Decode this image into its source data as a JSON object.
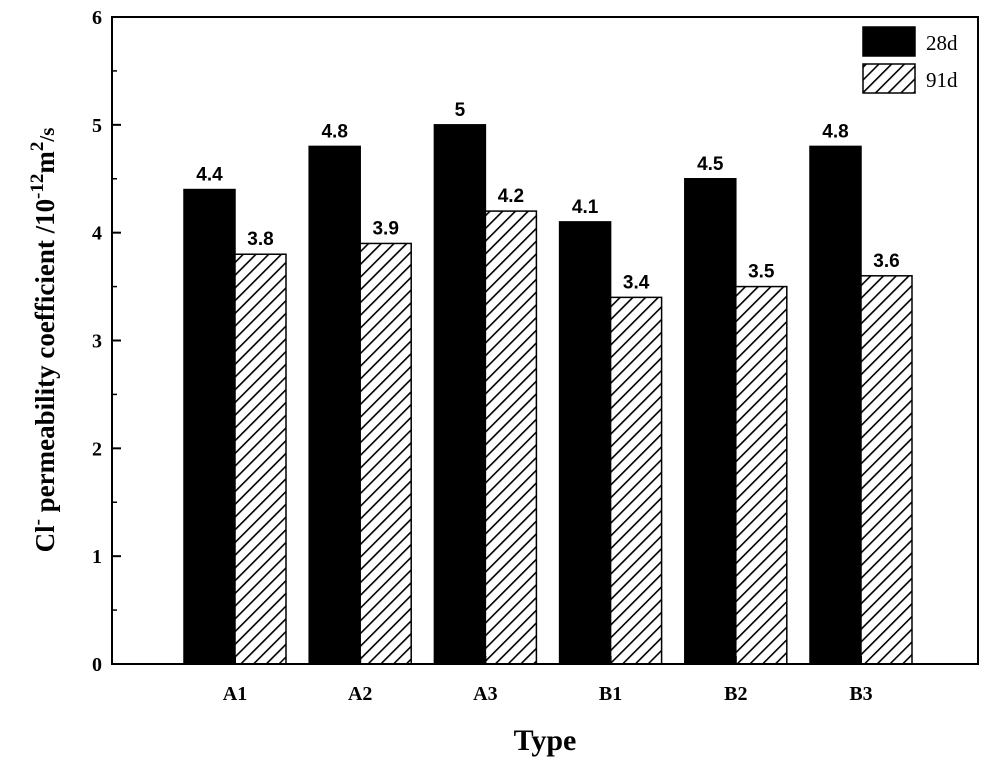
{
  "chart_data": {
    "type": "bar",
    "title": "",
    "categories": [
      "A1",
      "A2",
      "A3",
      "B1",
      "B2",
      "B3"
    ],
    "series": [
      {
        "name": "28d",
        "values": [
          4.4,
          4.8,
          5,
          4.1,
          4.5,
          4.8
        ],
        "labels": [
          "4.4",
          "4.8",
          "5",
          "4.1",
          "4.5",
          "4.8"
        ],
        "fill": "solid",
        "color": "#000000"
      },
      {
        "name": "91d",
        "values": [
          3.8,
          3.9,
          4.2,
          3.4,
          3.5,
          3.6
        ],
        "labels": [
          "3.8",
          "3.9",
          "4.2",
          "3.4",
          "3.5",
          "3.6"
        ],
        "fill": "hatched",
        "color": "#000000"
      }
    ],
    "xlabel": "Type",
    "ylabel": {
      "main": "Cl",
      "sup1": "-",
      "mid": " permeability coefficient /10",
      "sup2": "-12",
      "m": "m",
      "sup3": "2",
      "tail": "/s"
    },
    "ylim": [
      0,
      6
    ],
    "yticks": [
      "0",
      "1",
      "2",
      "3",
      "4",
      "5",
      "6"
    ],
    "grid": false,
    "legend": "top-right"
  }
}
